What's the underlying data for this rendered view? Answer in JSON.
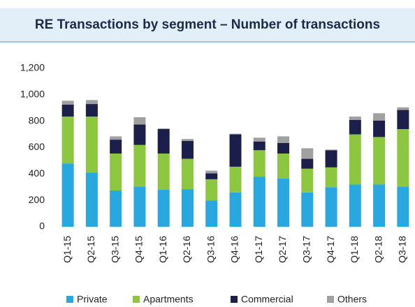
{
  "chart_data": {
    "type": "stacked_bar",
    "title": "RE Transactions by segment – Number of transactions",
    "categories": [
      "Q1-15",
      "Q2-15",
      "Q3-15",
      "Q4-15",
      "Q1-16",
      "Q2-16",
      "Q3-16",
      "Q4-16",
      "Q1-17",
      "Q2-17",
      "Q3-17",
      "Q4-17",
      "Q1-18",
      "Q2-18",
      "Q3-18"
    ],
    "series": [
      {
        "name": "Private",
        "color": "#29a8e0",
        "values": [
          480,
          410,
          275,
          305,
          280,
          285,
          200,
          260,
          380,
          365,
          260,
          300,
          320,
          320,
          305
        ]
      },
      {
        "name": "Apartments",
        "color": "#8dc63f",
        "values": [
          355,
          425,
          280,
          315,
          275,
          230,
          160,
          195,
          200,
          190,
          180,
          150,
          380,
          360,
          435
        ]
      },
      {
        "name": "Commercial",
        "color": "#1b1f4a",
        "values": [
          90,
          95,
          105,
          155,
          185,
          135,
          45,
          245,
          65,
          80,
          75,
          130,
          110,
          125,
          145
        ]
      },
      {
        "name": "Others",
        "color": "#a0a0a0",
        "values": [
          30,
          30,
          25,
          55,
          5,
          15,
          20,
          5,
          30,
          50,
          80,
          5,
          25,
          55,
          20
        ]
      }
    ],
    "ylim": [
      0,
      1200
    ],
    "yticks": [
      0,
      200,
      400,
      600,
      800,
      {
        "value": 1000,
        "label": "1,000"
      },
      {
        "value": 1200,
        "label": "1,200"
      }
    ],
    "legend": "bottom"
  }
}
